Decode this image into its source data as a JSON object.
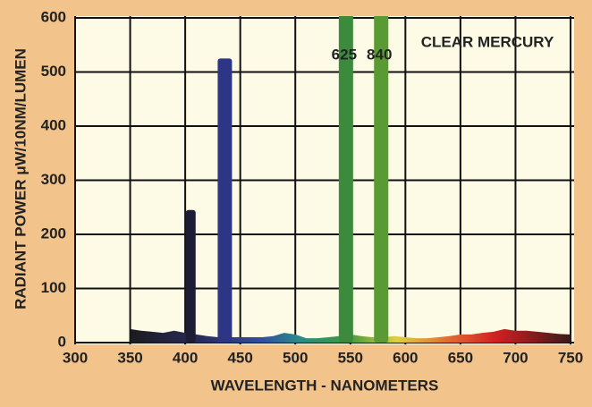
{
  "chart_data": {
    "type": "spectrum",
    "annotation": "CLEAR MERCURY",
    "x_label": "WAVELENGTH - NANOMETERS",
    "y_label": "RADIANT POWER μW/10NM/LUMEN",
    "xlim": [
      300,
      750
    ],
    "ylim": [
      0,
      600
    ],
    "xticks": [
      300,
      350,
      400,
      450,
      500,
      550,
      600,
      650,
      700,
      750
    ],
    "yticks": [
      0,
      100,
      200,
      300,
      400,
      500,
      600
    ],
    "grid": true,
    "continuum": {
      "x": [
        350,
        360,
        370,
        380,
        390,
        400,
        410,
        420,
        430,
        440,
        450,
        460,
        470,
        480,
        490,
        500,
        510,
        520,
        530,
        540,
        550,
        560,
        570,
        580,
        590,
        600,
        610,
        620,
        630,
        640,
        650,
        660,
        670,
        680,
        690,
        700,
        710,
        720,
        730,
        740,
        750
      ],
      "values": [
        25,
        22,
        20,
        18,
        22,
        18,
        15,
        12,
        10,
        10,
        10,
        10,
        10,
        12,
        18,
        15,
        8,
        8,
        10,
        12,
        15,
        12,
        10,
        10,
        12,
        10,
        8,
        8,
        10,
        12,
        15,
        15,
        18,
        20,
        25,
        22,
        22,
        20,
        18,
        16,
        15
      ]
    },
    "lines": {
      "x": [
        405,
        436,
        546,
        578
      ],
      "values": [
        245,
        525,
        625,
        840
      ],
      "value_labels": [
        null,
        null,
        "625",
        "840"
      ],
      "colors": [
        "#1c1c34",
        "#2c3684",
        "#3c8a3c",
        "#5a9a32"
      ]
    }
  }
}
